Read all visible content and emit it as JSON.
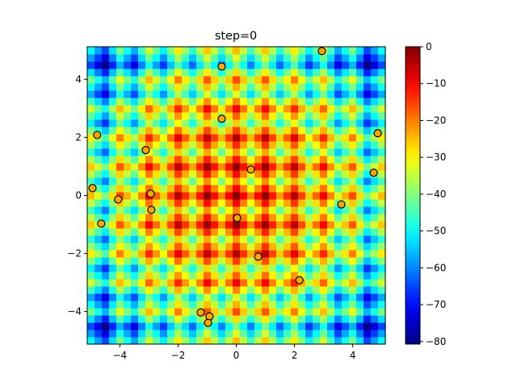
{
  "chart_data": {
    "type": "heatmap",
    "title": "step=0",
    "xlabel": "",
    "ylabel": "",
    "xlim": [
      -5.12,
      5.12
    ],
    "ylim": [
      -5.12,
      5.12
    ],
    "x_ticks": [
      -4,
      -2,
      0,
      2,
      4
    ],
    "y_ticks": [
      -4,
      -2,
      0,
      2,
      4
    ],
    "x_tick_labels": [
      "−4",
      "−2",
      "0",
      "2",
      "4"
    ],
    "y_tick_labels": [
      "−4",
      "−2",
      "0",
      "2",
      "4"
    ],
    "colormap": "jet",
    "color_range": [
      -80.7,
      0
    ],
    "colorbar_ticks": [
      0,
      -10,
      -20,
      -30,
      -40,
      -50,
      -60,
      -70,
      -80
    ],
    "colorbar_tick_labels": [
      "0",
      "−10",
      "−20",
      "−30",
      "−40",
      "−50",
      "−60",
      "−70",
      "−80"
    ],
    "surface": "negative Rastrigin function",
    "grid": false,
    "scatter": {
      "color": "#ffa500",
      "edgecolor": "#000000",
      "points": [
        {
          "x": 2.94,
          "y": 4.97
        },
        {
          "x": -0.5,
          "y": 4.44
        },
        {
          "x": -0.5,
          "y": 2.64
        },
        {
          "x": -4.78,
          "y": 2.08
        },
        {
          "x": -3.11,
          "y": 1.56
        },
        {
          "x": 0.5,
          "y": 0.89
        },
        {
          "x": 4.86,
          "y": 2.14
        },
        {
          "x": 4.72,
          "y": 0.78
        },
        {
          "x": -4.94,
          "y": 0.25
        },
        {
          "x": -4.06,
          "y": -0.14
        },
        {
          "x": -2.94,
          "y": 0.06
        },
        {
          "x": -2.92,
          "y": -0.5
        },
        {
          "x": 3.61,
          "y": -0.31
        },
        {
          "x": -4.64,
          "y": -0.97
        },
        {
          "x": 0.03,
          "y": -0.78
        },
        {
          "x": 0.75,
          "y": -2.11
        },
        {
          "x": 2.17,
          "y": -2.92
        },
        {
          "x": -1.22,
          "y": -4.03
        },
        {
          "x": -0.92,
          "y": -4.17
        },
        {
          "x": -0.97,
          "y": -4.39
        }
      ]
    }
  }
}
